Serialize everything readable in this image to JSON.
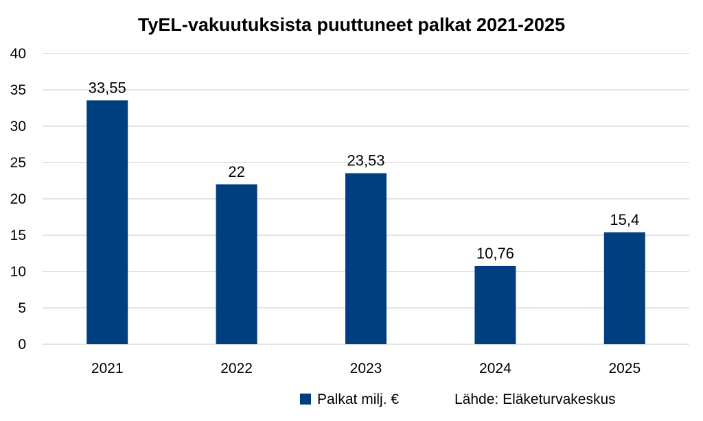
{
  "chart_data": {
    "type": "bar",
    "title": "TyEL-vakuutuksista puuttuneet palkat 2021-2025",
    "categories": [
      "2021",
      "2022",
      "2023",
      "2024",
      "2025"
    ],
    "series": [
      {
        "name": "Palkat milj. €",
        "values": [
          33.55,
          22,
          23.53,
          10.76,
          15.4
        ],
        "data_labels": [
          "33,55",
          "22",
          "23,53",
          "10,76",
          "15,4"
        ],
        "color": "#003f7f"
      }
    ],
    "ylim": [
      0,
      40
    ],
    "yticks": [
      0,
      5,
      10,
      15,
      20,
      25,
      30,
      35,
      40
    ],
    "grid": true,
    "gridline_color": "#c8c8c8",
    "legend_position": "bottom",
    "source_note": "Lähde: Eläketurvakeskus"
  }
}
